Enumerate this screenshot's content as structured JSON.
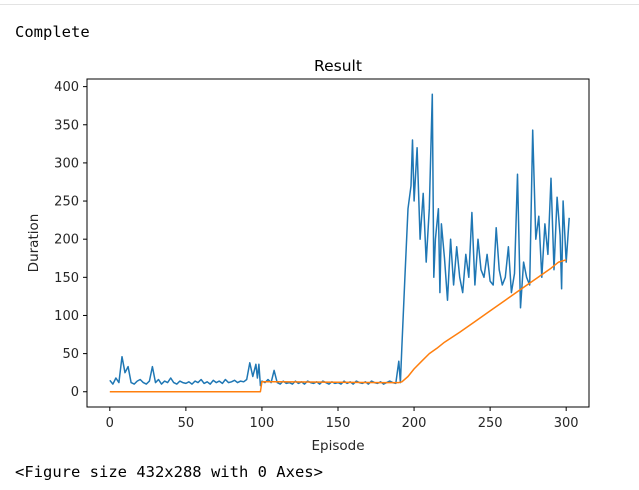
{
  "output": {
    "status_text": "Complete",
    "figure_text": "<Figure size 432x288 with 0 Axes>"
  },
  "colors": {
    "series_duration": "#1f77b4",
    "series_average": "#ff7f0e"
  },
  "chart_data": {
    "type": "line",
    "title": "Result",
    "xlabel": "Episode",
    "ylabel": "Duration",
    "xlim": [
      -15,
      315
    ],
    "ylim": [
      -20,
      410
    ],
    "x_ticks": [
      0,
      50,
      100,
      150,
      200,
      250,
      300
    ],
    "y_ticks": [
      0,
      50,
      100,
      150,
      200,
      250,
      300,
      350,
      400
    ],
    "grid": false,
    "series": [
      {
        "color_key": "series_duration",
        "points": [
          [
            0,
            15
          ],
          [
            2,
            10
          ],
          [
            4,
            18
          ],
          [
            6,
            12
          ],
          [
            8,
            46
          ],
          [
            10,
            25
          ],
          [
            12,
            33
          ],
          [
            14,
            12
          ],
          [
            16,
            10
          ],
          [
            18,
            14
          ],
          [
            20,
            16
          ],
          [
            22,
            12
          ],
          [
            24,
            10
          ],
          [
            26,
            14
          ],
          [
            28,
            33
          ],
          [
            30,
            12
          ],
          [
            32,
            16
          ],
          [
            34,
            10
          ],
          [
            36,
            14
          ],
          [
            38,
            12
          ],
          [
            40,
            18
          ],
          [
            42,
            12
          ],
          [
            44,
            10
          ],
          [
            46,
            14
          ],
          [
            48,
            12
          ],
          [
            50,
            11
          ],
          [
            52,
            13
          ],
          [
            54,
            10
          ],
          [
            56,
            14
          ],
          [
            58,
            12
          ],
          [
            60,
            16
          ],
          [
            62,
            11
          ],
          [
            64,
            13
          ],
          [
            66,
            10
          ],
          [
            68,
            15
          ],
          [
            70,
            12
          ],
          [
            72,
            14
          ],
          [
            74,
            11
          ],
          [
            76,
            16
          ],
          [
            78,
            12
          ],
          [
            80,
            13
          ],
          [
            82,
            15
          ],
          [
            84,
            12
          ],
          [
            86,
            14
          ],
          [
            88,
            13
          ],
          [
            90,
            16
          ],
          [
            92,
            38
          ],
          [
            94,
            20
          ],
          [
            96,
            36
          ],
          [
            97,
            18
          ],
          [
            98,
            36
          ],
          [
            99,
            8
          ],
          [
            100,
            14
          ],
          [
            102,
            12
          ],
          [
            104,
            16
          ],
          [
            106,
            12
          ],
          [
            108,
            28
          ],
          [
            110,
            12
          ],
          [
            112,
            10
          ],
          [
            114,
            14
          ],
          [
            116,
            11
          ],
          [
            118,
            12
          ],
          [
            120,
            10
          ],
          [
            122,
            14
          ],
          [
            124,
            11
          ],
          [
            126,
            13
          ],
          [
            128,
            10
          ],
          [
            130,
            14
          ],
          [
            132,
            12
          ],
          [
            134,
            11
          ],
          [
            136,
            13
          ],
          [
            138,
            10
          ],
          [
            140,
            14
          ],
          [
            142,
            12
          ],
          [
            144,
            10
          ],
          [
            146,
            13
          ],
          [
            148,
            11
          ],
          [
            150,
            12
          ],
          [
            152,
            10
          ],
          [
            154,
            14
          ],
          [
            156,
            11
          ],
          [
            158,
            13
          ],
          [
            160,
            10
          ],
          [
            162,
            14
          ],
          [
            164,
            12
          ],
          [
            166,
            11
          ],
          [
            168,
            13
          ],
          [
            170,
            10
          ],
          [
            172,
            14
          ],
          [
            174,
            12
          ],
          [
            176,
            11
          ],
          [
            178,
            13
          ],
          [
            180,
            10
          ],
          [
            182,
            12
          ],
          [
            184,
            14
          ],
          [
            186,
            12
          ],
          [
            188,
            11
          ],
          [
            190,
            40
          ],
          [
            191,
            12
          ],
          [
            192,
            60
          ],
          [
            194,
            150
          ],
          [
            196,
            240
          ],
          [
            198,
            270
          ],
          [
            199,
            330
          ],
          [
            200,
            250
          ],
          [
            202,
            320
          ],
          [
            204,
            200
          ],
          [
            206,
            260
          ],
          [
            208,
            170
          ],
          [
            210,
            240
          ],
          [
            212,
            390
          ],
          [
            213,
            150
          ],
          [
            214,
            200
          ],
          [
            216,
            240
          ],
          [
            217,
            130
          ],
          [
            218,
            220
          ],
          [
            220,
            175
          ],
          [
            222,
            120
          ],
          [
            224,
            200
          ],
          [
            226,
            140
          ],
          [
            228,
            190
          ],
          [
            230,
            150
          ],
          [
            232,
            130
          ],
          [
            234,
            180
          ],
          [
            236,
            150
          ],
          [
            238,
            235
          ],
          [
            240,
            140
          ],
          [
            242,
            200
          ],
          [
            244,
            160
          ],
          [
            246,
            150
          ],
          [
            248,
            180
          ],
          [
            250,
            145
          ],
          [
            252,
            140
          ],
          [
            254,
            215
          ],
          [
            256,
            160
          ],
          [
            258,
            140
          ],
          [
            260,
            150
          ],
          [
            262,
            190
          ],
          [
            264,
            130
          ],
          [
            266,
            155
          ],
          [
            268,
            285
          ],
          [
            270,
            110
          ],
          [
            272,
            170
          ],
          [
            274,
            150
          ],
          [
            276,
            140
          ],
          [
            278,
            343
          ],
          [
            280,
            200
          ],
          [
            282,
            230
          ],
          [
            284,
            150
          ],
          [
            286,
            220
          ],
          [
            288,
            180
          ],
          [
            290,
            280
          ],
          [
            292,
            160
          ],
          [
            294,
            255
          ],
          [
            296,
            205
          ],
          [
            297,
            135
          ],
          [
            298,
            250
          ],
          [
            300,
            170
          ],
          [
            302,
            228
          ]
        ]
      },
      {
        "color_key": "series_average",
        "points": [
          [
            0,
            0
          ],
          [
            99,
            0
          ],
          [
            100,
            13
          ],
          [
            110,
            13
          ],
          [
            180,
            12
          ],
          [
            190,
            12
          ],
          [
            192,
            13
          ],
          [
            196,
            20
          ],
          [
            200,
            30
          ],
          [
            205,
            40
          ],
          [
            210,
            50
          ],
          [
            215,
            57
          ],
          [
            220,
            65
          ],
          [
            230,
            78
          ],
          [
            240,
            92
          ],
          [
            250,
            106
          ],
          [
            260,
            120
          ],
          [
            270,
            134
          ],
          [
            280,
            148
          ],
          [
            290,
            162
          ],
          [
            295,
            170
          ],
          [
            300,
            173
          ]
        ]
      }
    ]
  }
}
